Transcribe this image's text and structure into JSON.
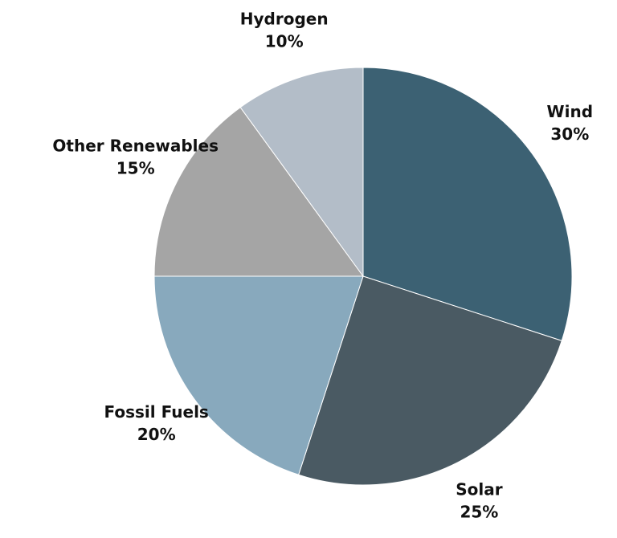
{
  "chart_data": {
    "type": "pie",
    "slices": [
      {
        "label": "Wind",
        "value": 30,
        "value_label": "30%",
        "color": "#3c6173"
      },
      {
        "label": "Solar",
        "value": 25,
        "value_label": "25%",
        "color": "#4a5a63"
      },
      {
        "label": "Fossil Fuels",
        "value": 20,
        "value_label": "20%",
        "color": "#88a9bd"
      },
      {
        "label": "Other Renewables",
        "value": 15,
        "value_label": "15%",
        "color": "#a5a5a5"
      },
      {
        "label": "Hydrogen",
        "value": 10,
        "value_label": "10%",
        "color": "#b3bdc8"
      }
    ],
    "start_angle_deg": 0,
    "direction": "clockwise",
    "legend": "none"
  }
}
